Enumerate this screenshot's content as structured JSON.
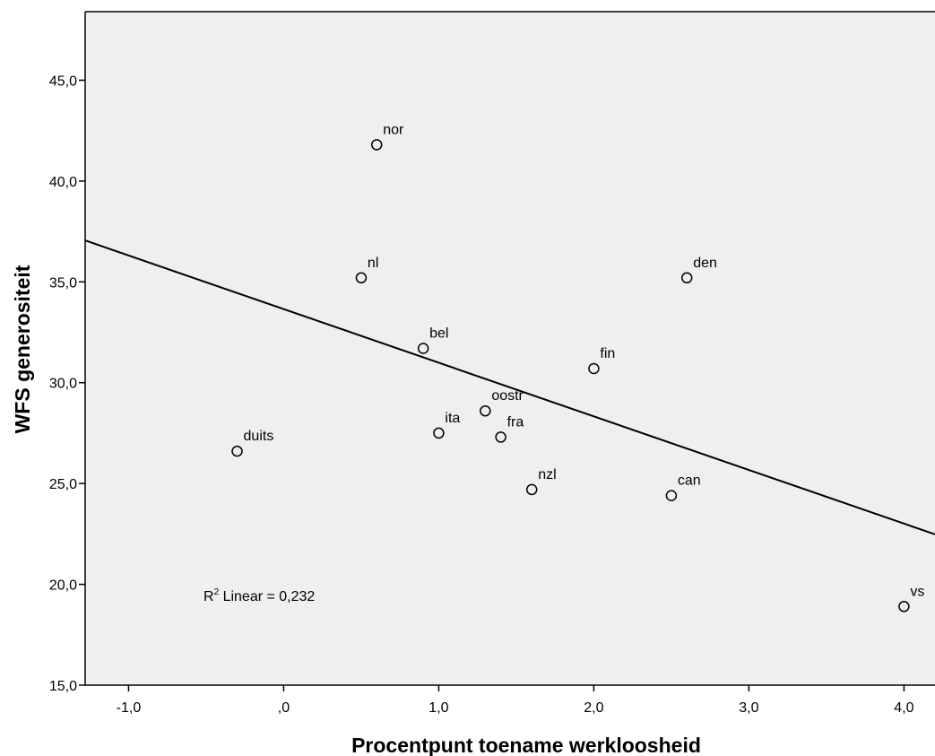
{
  "chart_data": {
    "type": "scatter",
    "xlabel": "Procentpunt toename werkloosheid",
    "ylabel": "WFS generositeit",
    "xlim": [
      -1.28,
      4.2
    ],
    "ylim": [
      15.0,
      48.4
    ],
    "x_ticks": [
      {
        "value": -1.0,
        "label": "-1,0"
      },
      {
        "value": 0.0,
        "label": ",0"
      },
      {
        "value": 1.0,
        "label": "1,0"
      },
      {
        "value": 2.0,
        "label": "2,0"
      },
      {
        "value": 3.0,
        "label": "3,0"
      },
      {
        "value": 4.0,
        "label": "4,0"
      }
    ],
    "y_ticks": [
      {
        "value": 15.0,
        "label": "15,0"
      },
      {
        "value": 20.0,
        "label": "20,0"
      },
      {
        "value": 25.0,
        "label": "25,0"
      },
      {
        "value": 30.0,
        "label": "30,0"
      },
      {
        "value": 35.0,
        "label": "35,0"
      },
      {
        "value": 40.0,
        "label": "40,0"
      },
      {
        "value": 45.0,
        "label": "45,0"
      }
    ],
    "points": [
      {
        "label": "nor",
        "x": 0.6,
        "y": 41.8
      },
      {
        "label": "nl",
        "x": 0.5,
        "y": 35.2
      },
      {
        "label": "den",
        "x": 2.6,
        "y": 35.2
      },
      {
        "label": "bel",
        "x": 0.9,
        "y": 31.7
      },
      {
        "label": "fin",
        "x": 2.0,
        "y": 30.7
      },
      {
        "label": "oostr",
        "x": 1.3,
        "y": 28.6
      },
      {
        "label": "ita",
        "x": 1.0,
        "y": 27.5
      },
      {
        "label": "fra",
        "x": 1.4,
        "y": 27.3
      },
      {
        "label": "duits",
        "x": -0.3,
        "y": 26.6
      },
      {
        "label": "nzl",
        "x": 1.6,
        "y": 24.7
      },
      {
        "label": "can",
        "x": 2.5,
        "y": 24.4
      },
      {
        "label": "vs",
        "x": 4.0,
        "y": 18.9
      }
    ],
    "fit_line": {
      "intercept": 33.65,
      "slope": -2.66
    },
    "r2_label": "Linear = 0,232",
    "grid": false,
    "background": "#efefef"
  }
}
